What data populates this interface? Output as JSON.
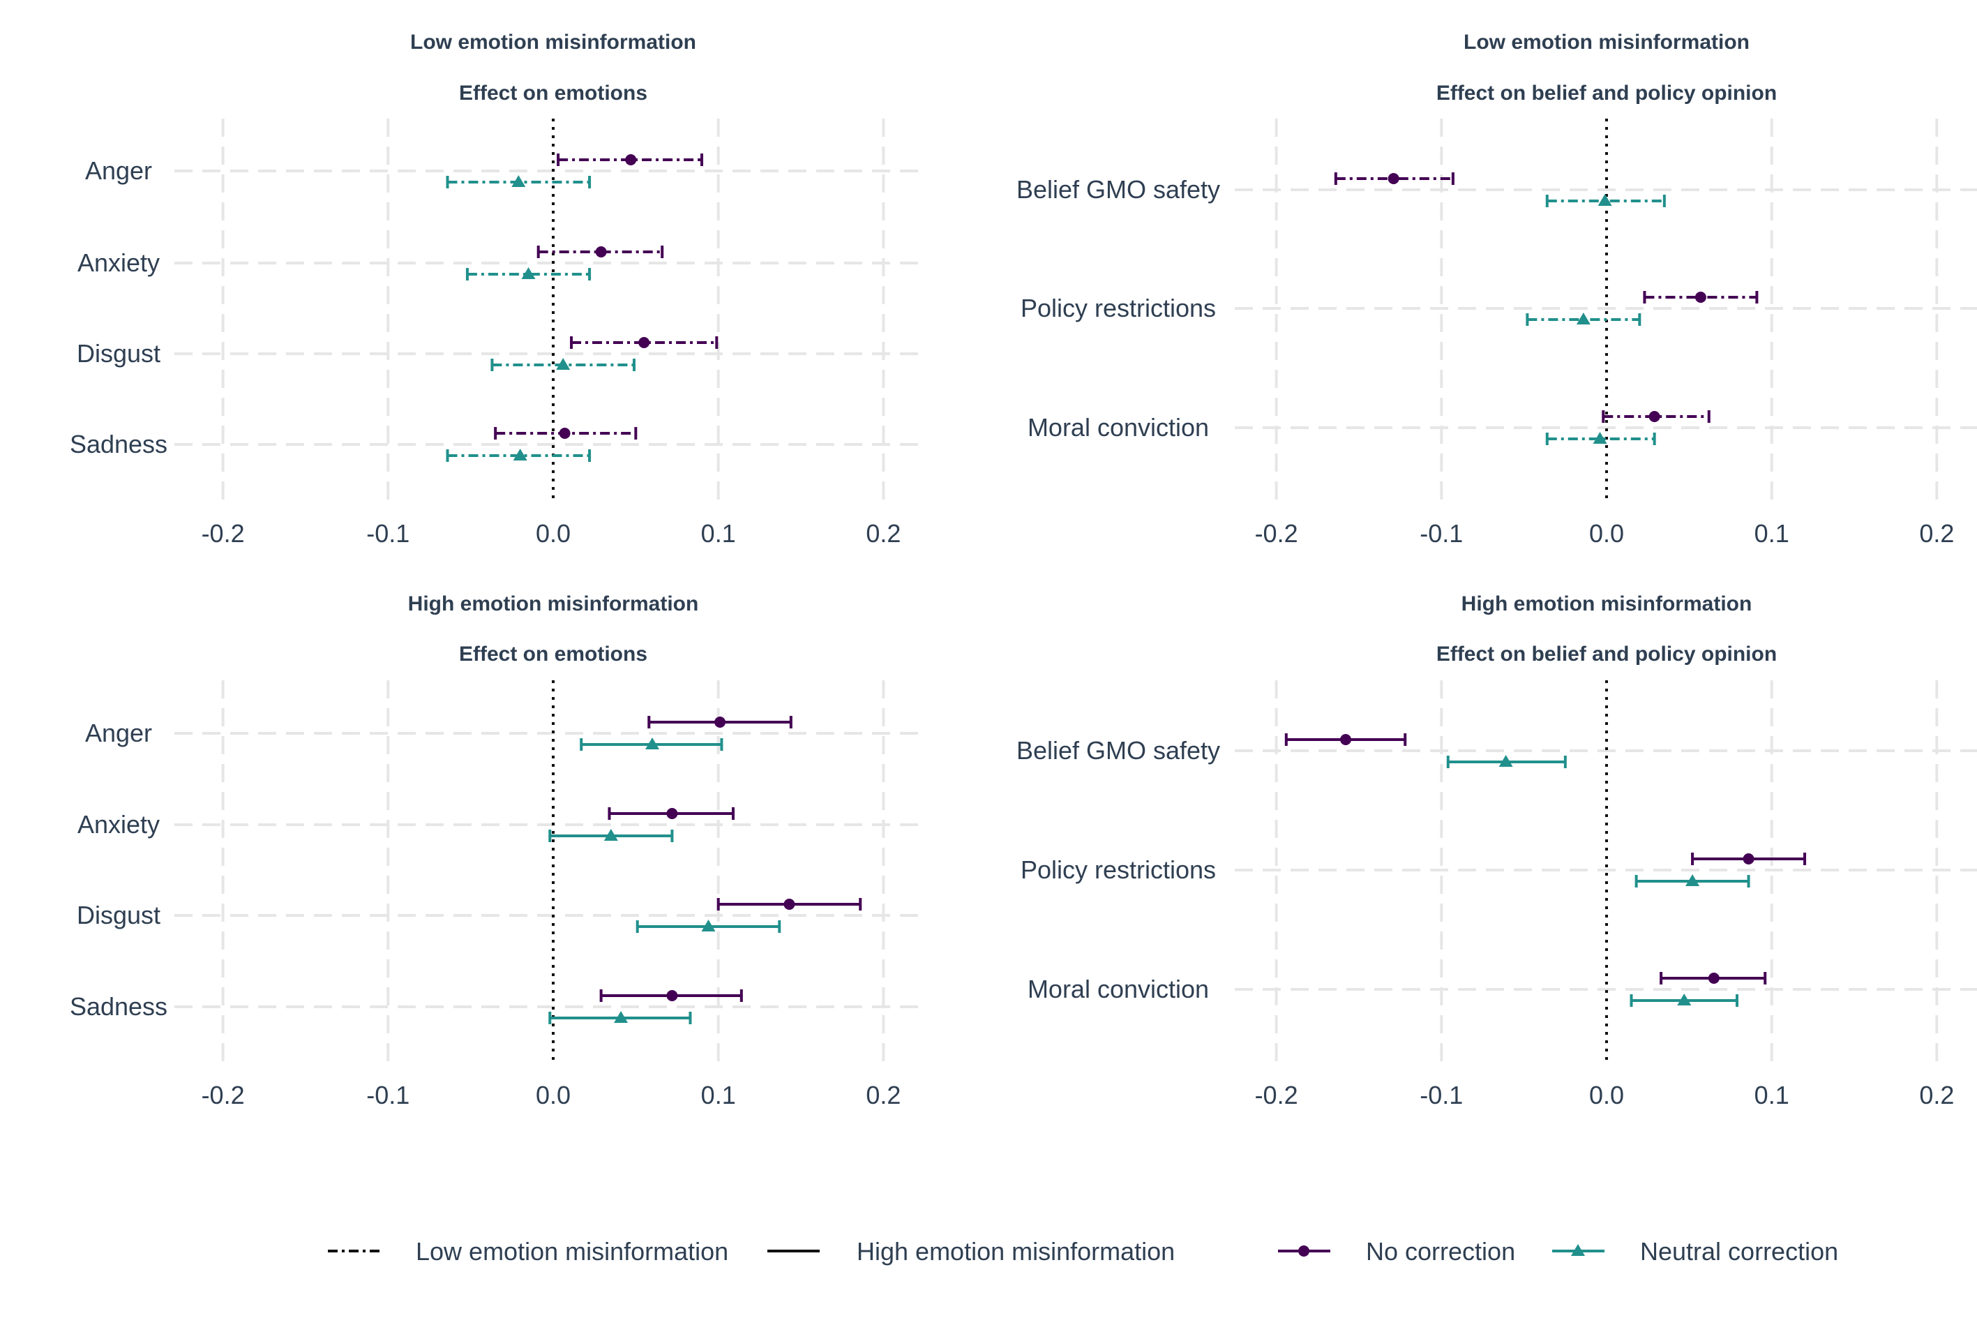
{
  "colors": {
    "no_correction": "#440154",
    "neutral_correction": "#21908c",
    "text": "#2f3f52",
    "grid": "#e6e6e6"
  },
  "legend": {
    "linetype": [
      "Low emotion misinformation",
      "High emotion misinformation"
    ],
    "correction": [
      "No correction",
      "Neutral correction"
    ]
  },
  "chart_data": [
    {
      "type": "scatter",
      "title": "Low emotion misinformation",
      "subtitle": "Effect on emotions",
      "linetype": "dashed",
      "xlim": [
        -0.22,
        0.22
      ],
      "xticks": [
        -0.2,
        -0.1,
        0.0,
        0.1,
        0.2
      ],
      "xtick_labels": [
        "-0.2",
        "-0.1",
        "0.0",
        "0.1",
        "0.2"
      ],
      "categories": [
        "Anger",
        "Anxiety",
        "Disgust",
        "Sadness"
      ],
      "series": [
        {
          "name": "No correction",
          "estimates": [
            0.047,
            0.029,
            0.055,
            0.007
          ],
          "ci_low": [
            0.003,
            -0.009,
            0.011,
            -0.035
          ],
          "ci_high": [
            0.09,
            0.066,
            0.099,
            0.05
          ]
        },
        {
          "name": "Neutral correction",
          "estimates": [
            -0.021,
            -0.015,
            0.006,
            -0.02
          ],
          "ci_low": [
            -0.064,
            -0.052,
            -0.037,
            -0.064
          ],
          "ci_high": [
            0.022,
            0.022,
            0.049,
            0.022
          ]
        }
      ]
    },
    {
      "type": "scatter",
      "title": "Low emotion misinformation",
      "subtitle": "Effect on belief and policy opinion",
      "linetype": "dashed",
      "xlim": [
        -0.22,
        0.22
      ],
      "xticks": [
        -0.2,
        -0.1,
        0.0,
        0.1,
        0.2
      ],
      "xtick_labels": [
        "-0.2",
        "-0.1",
        "0.0",
        "0.1",
        "0.2"
      ],
      "categories": [
        "Belief GMO safety",
        "Policy restrictions",
        "Moral conviction"
      ],
      "series": [
        {
          "name": "No correction",
          "estimates": [
            -0.129,
            0.057,
            0.029
          ],
          "ci_low": [
            -0.164,
            0.023,
            -0.002
          ],
          "ci_high": [
            -0.093,
            0.091,
            0.062
          ]
        },
        {
          "name": "Neutral correction",
          "estimates": [
            -0.001,
            -0.014,
            -0.004
          ],
          "ci_low": [
            -0.036,
            -0.048,
            -0.036
          ],
          "ci_high": [
            0.035,
            0.02,
            0.029
          ]
        }
      ]
    },
    {
      "type": "scatter",
      "title": "High emotion misinformation",
      "subtitle": "Effect on emotions",
      "linetype": "solid",
      "xlim": [
        -0.22,
        0.22
      ],
      "xticks": [
        -0.2,
        -0.1,
        0.0,
        0.1,
        0.2
      ],
      "xtick_labels": [
        "-0.2",
        "-0.1",
        "0.0",
        "0.1",
        "0.2"
      ],
      "categories": [
        "Anger",
        "Anxiety",
        "Disgust",
        "Sadness"
      ],
      "series": [
        {
          "name": "No correction",
          "estimates": [
            0.101,
            0.072,
            0.143,
            0.072
          ],
          "ci_low": [
            0.058,
            0.034,
            0.1,
            0.029
          ],
          "ci_high": [
            0.144,
            0.109,
            0.186,
            0.114
          ]
        },
        {
          "name": "Neutral correction",
          "estimates": [
            0.06,
            0.035,
            0.094,
            0.041
          ],
          "ci_low": [
            0.017,
            -0.002,
            0.051,
            -0.002
          ],
          "ci_high": [
            0.102,
            0.072,
            0.137,
            0.083
          ]
        }
      ]
    },
    {
      "type": "scatter",
      "title": "High emotion misinformation",
      "subtitle": "Effect on belief and policy opinion",
      "linetype": "solid",
      "xlim": [
        -0.22,
        0.22
      ],
      "xticks": [
        -0.2,
        -0.1,
        0.0,
        0.1,
        0.2
      ],
      "xtick_labels": [
        "-0.2",
        "-0.1",
        "0.0",
        "0.1",
        "0.2"
      ],
      "categories": [
        "Belief GMO safety",
        "Policy restrictions",
        "Moral conviction"
      ],
      "series": [
        {
          "name": "No correction",
          "estimates": [
            -0.158,
            0.086,
            0.065
          ],
          "ci_low": [
            -0.194,
            0.052,
            0.033
          ],
          "ci_high": [
            -0.122,
            0.12,
            0.096
          ]
        },
        {
          "name": "Neutral correction",
          "estimates": [
            -0.061,
            0.052,
            0.047
          ],
          "ci_low": [
            -0.096,
            0.018,
            0.015
          ],
          "ci_high": [
            -0.025,
            0.086,
            0.079
          ]
        }
      ]
    }
  ]
}
